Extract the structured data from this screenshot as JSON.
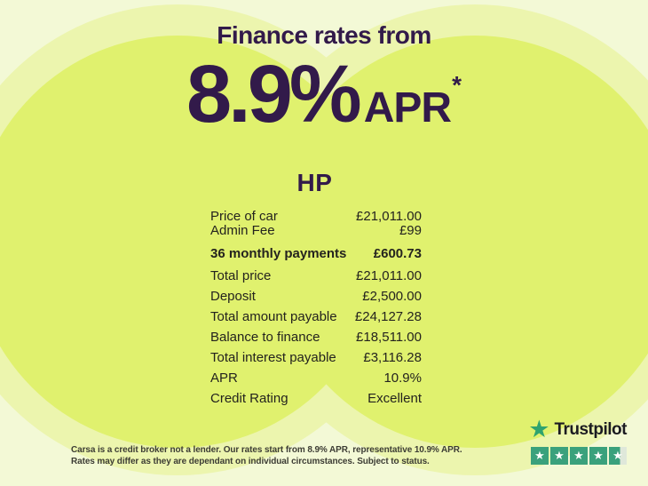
{
  "promo": {
    "title": "Finance rates from",
    "rate_display": "8.9%",
    "rate_suffix": "APR",
    "asterisk": "*"
  },
  "finance_table": {
    "heading": "HP",
    "rows": [
      {
        "label": "Price of car",
        "value": "£21,011.00",
        "bold": false
      },
      {
        "label": "Admin Fee",
        "value": "£99",
        "bold": false
      },
      {
        "label": "36 monthly payments",
        "value": "£600.73",
        "bold": true
      },
      {
        "label": "Total price",
        "value": "£21,011.00",
        "bold": false
      },
      {
        "label": "Deposit",
        "value": "£2,500.00",
        "bold": false
      },
      {
        "label": "Total amount payable",
        "value": "£24,127.28",
        "bold": false
      },
      {
        "label": "Balance to finance",
        "value": "£18,511.00",
        "bold": false
      },
      {
        "label": "Total interest payable",
        "value": "£3,116.28",
        "bold": false
      },
      {
        "label": "APR",
        "value": "10.9%",
        "bold": false
      },
      {
        "label": "Credit Rating",
        "value": "Excellent",
        "bold": false
      }
    ]
  },
  "disclaimer": {
    "line1": "Carsa is a credit broker not a lender. Our rates start from 8.9% APR, representative 10.9% APR.",
    "line2": "Rates may differ as they are dependant on individual circumstances. Subject to status."
  },
  "trustpilot": {
    "brand": "Trustpilot",
    "star_glyph": "★",
    "rating_value": 4.5,
    "total_stars": 5
  },
  "colors": {
    "background_pale": "#f3f9d6",
    "background_halo": "#ecf5ae",
    "background_bright": "#e0f16e",
    "headline_purple": "#321a4a",
    "table_ink": "#24231e",
    "trustpilot_green": "#3aa17c",
    "trustpilot_star_green": "#2fa36f",
    "trustpilot_empty": "#dfe8da"
  }
}
